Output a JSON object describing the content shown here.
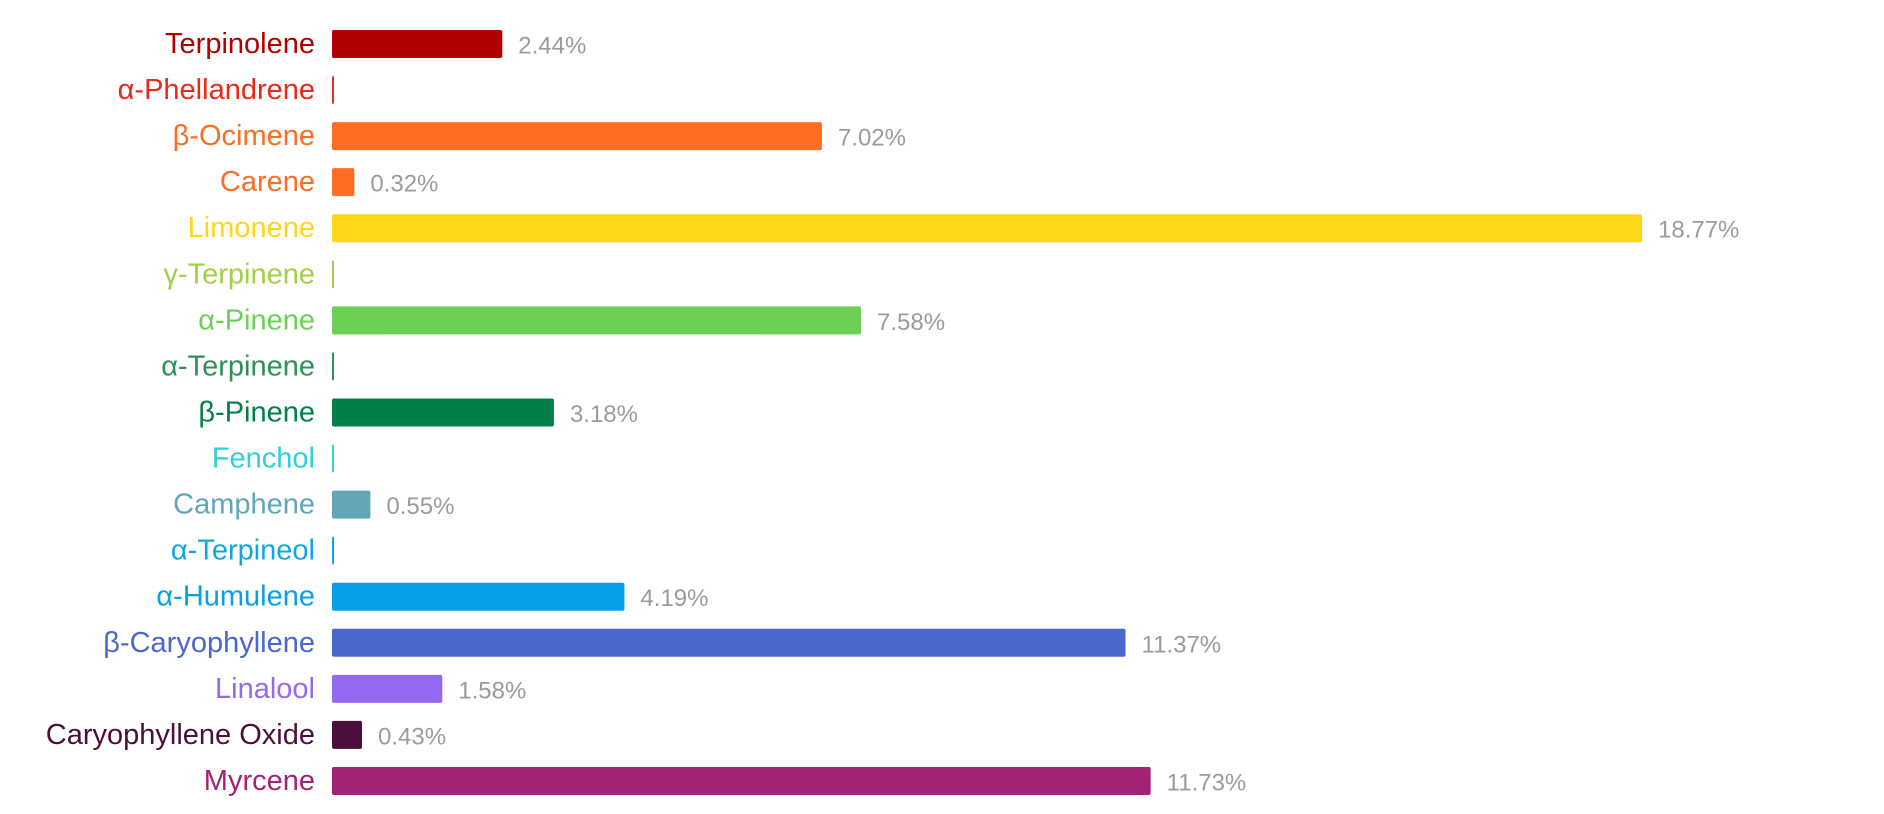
{
  "chart_data": {
    "type": "bar",
    "orientation": "horizontal",
    "title": "",
    "xlabel": "",
    "ylabel": "",
    "grid": false,
    "legend": "none",
    "xlim": [
      0,
      18.77
    ],
    "categories": [
      "Terpinolene",
      "α-Phellandrene",
      "β-Ocimene",
      "Carene",
      "Limonene",
      "γ-Terpinene",
      "α-Pinene",
      "α-Terpinene",
      "β-Pinene",
      "Fenchol",
      "Camphene",
      "α-Terpineol",
      "α-Humulene",
      "β-Caryophyllene",
      "Linalool",
      "Caryophyllene Oxide",
      "Myrcene"
    ],
    "values": [
      2.44,
      0,
      7.02,
      0.32,
      18.77,
      0,
      7.58,
      0,
      3.18,
      0,
      0.55,
      0,
      4.19,
      11.37,
      1.58,
      0.43,
      11.73
    ],
    "value_labels": [
      "2.44%",
      "",
      "7.02%",
      "0.32%",
      "18.77%",
      "",
      "7.58%",
      "",
      "3.18%",
      "",
      "0.55%",
      "",
      "4.19%",
      "11.37%",
      "1.58%",
      "0.43%",
      "11.73%"
    ],
    "colors": [
      "#b10000",
      "#e8291c",
      "#ff6d22",
      "#ff6d22",
      "#ffd61a",
      "#a3cf4a",
      "#6bd055",
      "#2f8f5b",
      "#008048",
      "#30cfd9",
      "#63a6b8",
      "#12a7dc",
      "#069fe8",
      "#4a68cc",
      "#9369f2",
      "#4a0f3c",
      "#a42275"
    ]
  }
}
